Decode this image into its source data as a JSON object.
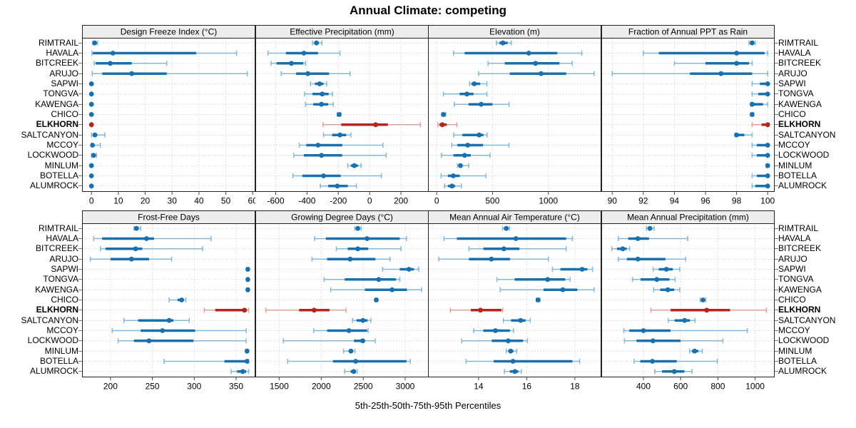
{
  "title": "Annual Climate: competing",
  "caption": "5th-25th-50th-75th-95th Percentiles",
  "colors": {
    "blue_dark": "#1a6fad",
    "blue_light": "#85b7d7",
    "red_dark": "#b2261f",
    "red_light": "#e0a09a",
    "grid": "#c4c4c4",
    "strip_bg": "#ededed",
    "border": "#222222",
    "tick": "#444444"
  },
  "chart_data": {
    "type": "dotplot-percentiles",
    "title": "Annual Climate: competing",
    "percentiles": [
      5,
      25,
      50,
      75,
      95
    ],
    "highlight": "ELKHORN",
    "layout": {
      "rows": 2,
      "cols": 4,
      "grid": "dotted",
      "legend_position": "none"
    },
    "categories": [
      "RIMTRAIL",
      "HAVALA",
      "BITCREEK",
      "ARUJO",
      "SAPWI",
      "TONGVA",
      "KAWENGA",
      "CHICO",
      "ELKHORN",
      "SALTCANYON",
      "MCCOY",
      "LOCKWOOD",
      "MINLUM",
      "BOTELLA",
      "ALUMROCK"
    ],
    "panels": [
      {
        "title": "Design Freeze Index (°C)",
        "xlim": [
          -3.5,
          61
        ],
        "ticks": [
          0,
          10,
          20,
          30,
          40,
          50,
          60
        ],
        "values": [
          [
            0.5,
            0.9,
            1.2,
            1.7,
            2.3
          ],
          [
            0.2,
            0.5,
            8,
            39,
            54
          ],
          [
            1,
            1.6,
            7,
            15,
            28
          ],
          [
            0.3,
            4,
            15,
            28,
            58
          ],
          [
            0,
            0,
            0,
            0,
            0
          ],
          [
            0,
            0,
            0,
            0,
            0
          ],
          [
            0,
            0,
            0,
            0,
            0
          ],
          [
            0,
            0,
            0,
            0,
            0
          ],
          [
            0,
            0,
            0,
            0,
            0
          ],
          [
            0,
            0.6,
            1.3,
            2.1,
            5
          ],
          [
            0,
            0.1,
            0.4,
            1,
            3.3
          ],
          [
            0,
            0.3,
            0.8,
            1.3,
            1.9
          ],
          [
            0,
            0,
            0,
            0,
            0
          ],
          [
            0,
            0,
            0,
            0,
            0
          ],
          [
            0,
            0,
            0,
            0,
            0
          ]
        ]
      },
      {
        "title": "Effective Precipitation (mm)",
        "xlim": [
          -730,
          377
        ],
        "ticks": [
          -600,
          -400,
          -200,
          0,
          200
        ],
        "values": [
          [
            -365,
            -350,
            -340,
            -325,
            -305
          ],
          [
            -650,
            -535,
            -420,
            -330,
            -190
          ],
          [
            -630,
            -595,
            -500,
            -425,
            -410
          ],
          [
            -565,
            -470,
            -395,
            -260,
            -125
          ],
          [
            -378,
            -350,
            -320,
            -295,
            -275
          ],
          [
            -415,
            -365,
            -303,
            -262,
            -238
          ],
          [
            -410,
            -360,
            -308,
            -265,
            -233
          ],
          [
            -207,
            -200,
            -195,
            -190,
            -184
          ],
          [
            -297,
            -182,
            38,
            116,
            324
          ],
          [
            -295,
            -240,
            -190,
            -150,
            -120
          ],
          [
            -450,
            -405,
            -330,
            -175,
            85
          ],
          [
            -485,
            -420,
            -308,
            -175,
            105
          ],
          [
            -140,
            -120,
            -98,
            -75,
            -55
          ],
          [
            -490,
            -430,
            -295,
            -185,
            75
          ],
          [
            -315,
            -265,
            -207,
            -140,
            -85
          ]
        ]
      },
      {
        "title": "Elevation (m)",
        "xlim": [
          -78,
          1475
        ],
        "ticks": [
          0,
          500,
          1000
        ],
        "values": [
          [
            535,
            562,
            593,
            635,
            668
          ],
          [
            150,
            250,
            825,
            1080,
            1300
          ],
          [
            460,
            610,
            885,
            1100,
            1215
          ],
          [
            375,
            655,
            935,
            1160,
            1410
          ],
          [
            295,
            312,
            337,
            390,
            450
          ],
          [
            60,
            205,
            270,
            330,
            450
          ],
          [
            157,
            285,
            398,
            500,
            648
          ],
          [
            45,
            53,
            61,
            70,
            80
          ],
          [
            11,
            25,
            50,
            90,
            180
          ],
          [
            152,
            230,
            380,
            418,
            452
          ],
          [
            135,
            185,
            278,
            415,
            648
          ],
          [
            43,
            150,
            250,
            305,
            478
          ],
          [
            185,
            200,
            213,
            232,
            287
          ],
          [
            39,
            100,
            148,
            207,
            441
          ],
          [
            70,
            100,
            137,
            165,
            222
          ]
        ]
      },
      {
        "title": "Fraction of Annual PPT as Rain",
        "xlim": [
          89.3,
          100.45
        ],
        "ticks": [
          90,
          92,
          94,
          96,
          98,
          100
        ],
        "values": [
          [
            98.8,
            98.9,
            99,
            99.1,
            99.2
          ],
          [
            92,
            93,
            98,
            99.8,
            100
          ],
          [
            94,
            96,
            98,
            98.8,
            99
          ],
          [
            90,
            95,
            97,
            99,
            100
          ],
          [
            99,
            99.5,
            100,
            100,
            100
          ],
          [
            99,
            99.4,
            100,
            100,
            100
          ],
          [
            98.9,
            99,
            99,
            99.7,
            100
          ],
          [
            98.9,
            98.95,
            99,
            99.05,
            99.1
          ],
          [
            99,
            99.6,
            100,
            100,
            100
          ],
          [
            97.9,
            98,
            98,
            98.5,
            99
          ],
          [
            99,
            99.3,
            100,
            100,
            100
          ],
          [
            99,
            99.3,
            100,
            100,
            100
          ],
          [
            99.9,
            99.95,
            100,
            100,
            100
          ],
          [
            99,
            99.3,
            100,
            100,
            100
          ],
          [
            99,
            99.2,
            100,
            100,
            100
          ]
        ]
      },
      {
        "title": "Frost-Free Days",
        "xlim": [
          166,
          373
        ],
        "ticks": [
          200,
          250,
          300,
          350
        ],
        "values": [
          [
            228,
            229,
            231,
            233,
            236
          ],
          [
            180,
            190,
            243,
            252,
            320
          ],
          [
            188,
            194,
            230,
            238,
            310
          ],
          [
            176,
            200,
            225,
            246,
            273
          ],
          [
            362.5,
            363,
            364,
            364.5,
            365
          ],
          [
            362.5,
            363,
            364,
            364.5,
            365
          ],
          [
            362.5,
            363,
            364,
            364.5,
            365
          ],
          [
            270,
            280,
            285,
            287,
            290
          ],
          [
            312,
            325,
            360,
            363,
            365
          ],
          [
            216,
            233,
            270,
            275,
            294
          ],
          [
            202,
            236,
            262,
            301,
            362
          ],
          [
            209,
            228,
            246,
            299,
            362
          ],
          [
            361.5,
            362,
            363,
            363.5,
            364
          ],
          [
            264,
            336,
            363,
            364,
            365
          ],
          [
            344,
            351,
            358,
            362,
            365
          ]
        ]
      },
      {
        "title": "Growing Degree Days (°C)",
        "xlim": [
          1216,
          3280
        ],
        "ticks": [
          1500,
          2000,
          2500,
          3000
        ],
        "values": [
          [
            2400,
            2420,
            2436,
            2456,
            2476
          ],
          [
            1920,
            2055,
            2546,
            2935,
            3015
          ],
          [
            2180,
            2315,
            2436,
            2560,
            2950
          ],
          [
            1890,
            2070,
            2345,
            2645,
            2820
          ],
          [
            2730,
            2935,
            3045,
            3105,
            3160
          ],
          [
            2035,
            2280,
            2685,
            2890,
            2935
          ],
          [
            2113,
            2520,
            2844,
            3020,
            3195
          ],
          [
            2640,
            2650,
            2656,
            2663,
            2672
          ],
          [
            1340,
            1737,
            1916,
            2098,
            2295
          ],
          [
            2373,
            2420,
            2497,
            2550,
            2592
          ],
          [
            1910,
            2070,
            2330,
            2545,
            2558
          ],
          [
            1550,
            2390,
            2494,
            2522,
            2642
          ],
          [
            2266,
            2330,
            2353,
            2380,
            2402
          ],
          [
            1600,
            2140,
            2410,
            3015,
            3060
          ],
          [
            2280,
            2350,
            2387,
            2410,
            2428
          ]
        ]
      },
      {
        "title": "Mean Annual Air Temperature (°C)",
        "xlim": [
          11.9,
          19.1
        ],
        "ticks": [
          14,
          16,
          18
        ],
        "values": [
          [
            15.0,
            15.07,
            15.15,
            15.21,
            15.28
          ],
          [
            12.56,
            13.1,
            15.55,
            17.64,
            17.9
          ],
          [
            13.6,
            14.2,
            15.05,
            15.7,
            17.64
          ],
          [
            12.35,
            13.6,
            14.53,
            15.3,
            16.9
          ],
          [
            17.07,
            17.4,
            18.3,
            18.52,
            18.74
          ],
          [
            14.76,
            15.5,
            16.87,
            17.6,
            17.8
          ],
          [
            14.9,
            16.7,
            17.5,
            18.1,
            18.8
          ],
          [
            16.4,
            16.44,
            16.47,
            16.51,
            16.55
          ],
          [
            12.83,
            13.68,
            14.08,
            14.95,
            15.0
          ],
          [
            15.03,
            15.35,
            15.75,
            15.95,
            16.15
          ],
          [
            13.8,
            14.2,
            14.7,
            15.3,
            15.45
          ],
          [
            13.3,
            14.55,
            15.23,
            15.85,
            16.03
          ],
          [
            15.15,
            15.25,
            15.33,
            15.45,
            15.58
          ],
          [
            13.48,
            14.63,
            15.43,
            17.9,
            18.2
          ],
          [
            15.08,
            15.3,
            15.51,
            15.65,
            15.78
          ]
        ]
      },
      {
        "title": "Mean Annual Precipitation (mm)",
        "xlim": [
          174,
          1105
        ],
        "ticks": [
          400,
          600,
          800,
          1000
        ],
        "values": [
          [
            416,
            425,
            435,
            447,
            458
          ],
          [
            265,
            318,
            370,
            430,
            638
          ],
          [
            230,
            258,
            289,
            310,
            326
          ],
          [
            265,
            311,
            370,
            518,
            627
          ],
          [
            452,
            482,
            523,
            558,
            595
          ],
          [
            341,
            385,
            472,
            540,
            570
          ],
          [
            455,
            490,
            531,
            565,
            595
          ],
          [
            705,
            712,
            720,
            728,
            735
          ],
          [
            440,
            546,
            740,
            865,
            1060
          ],
          [
            533,
            568,
            621,
            650,
            677
          ],
          [
            295,
            324,
            400,
            546,
            958
          ],
          [
            298,
            363,
            451,
            599,
            827
          ],
          [
            648,
            660,
            675,
            695,
            716
          ],
          [
            350,
            383,
            448,
            579,
            797
          ],
          [
            461,
            500,
            566,
            620,
            661
          ]
        ]
      }
    ]
  }
}
